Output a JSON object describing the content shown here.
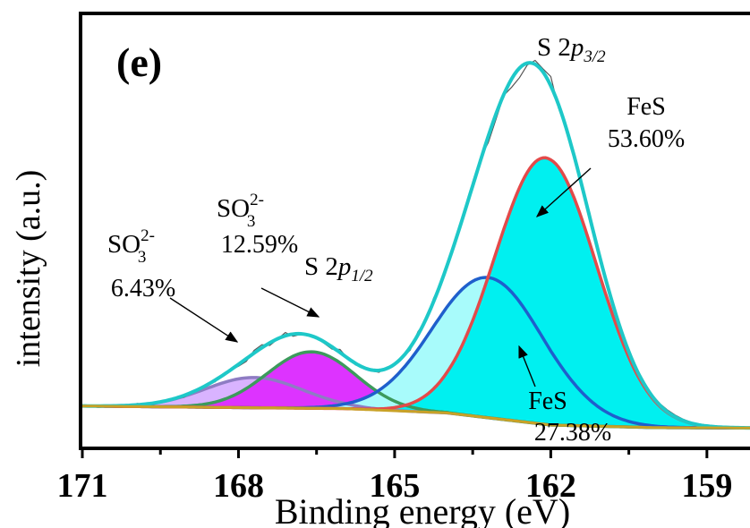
{
  "panel_label": "(e)",
  "chart_data": {
    "type": "area",
    "xlabel": "Binding energy (eV)",
    "ylabel": "intensity (a.u.)",
    "xlim": [
      171,
      158
    ],
    "ylim": [
      0,
      1
    ],
    "x_ticks": [
      171,
      168,
      165,
      162,
      159
    ],
    "x_tick_labels": [
      "171",
      "168",
      "165",
      "162",
      "159"
    ],
    "y_ticks_shown": false,
    "grid": false,
    "baseline": [
      [
        171,
        0.094
      ],
      [
        166,
        0.088
      ],
      [
        164,
        0.078
      ],
      [
        162,
        0.05
      ],
      [
        160,
        0.044
      ],
      [
        158,
        0.043
      ]
    ],
    "components": [
      {
        "key": "so3_low",
        "label_top": "SO",
        "label_sub": "3",
        "label_sup": "2-",
        "percent": "6.43%",
        "center": 167.7,
        "height": 0.07,
        "fwhm": 2.2,
        "stroke": "#8e7cc3",
        "fill": "#d9b3ff"
      },
      {
        "key": "so3_high",
        "label_top": "SO",
        "label_sub": "3",
        "label_sup": "2-",
        "percent": "12.59%",
        "center": 166.6,
        "height": 0.131,
        "fwhm": 2.0,
        "stroke": "#3c9a5c",
        "fill": "#dd33ff"
      },
      {
        "key": "fes_p12",
        "label_top": "FeS",
        "percent": "27.38%",
        "center": 163.2,
        "height": 0.325,
        "fwhm": 2.5,
        "stroke": "#1f5fcc",
        "fill": "#a8fbfb"
      },
      {
        "key": "fes_p32",
        "label_top": "FeS",
        "percent": "53.60%",
        "center": 162.1,
        "height": 0.618,
        "fwhm": 2.3,
        "stroke": "#e34a4a",
        "fill": "#00f0f0"
      }
    ],
    "envelope": {
      "stroke": "#1ec8c8"
    },
    "raw_data": {
      "stroke": "#555555"
    },
    "peak_annotations": [
      {
        "key": "p32",
        "prefix": "S 2",
        "italic": "p",
        "sub": "3/2"
      },
      {
        "key": "p12",
        "prefix": "S 2",
        "italic": "p",
        "sub": "1/2"
      }
    ],
    "baseline_stroke": "#c9a227"
  }
}
